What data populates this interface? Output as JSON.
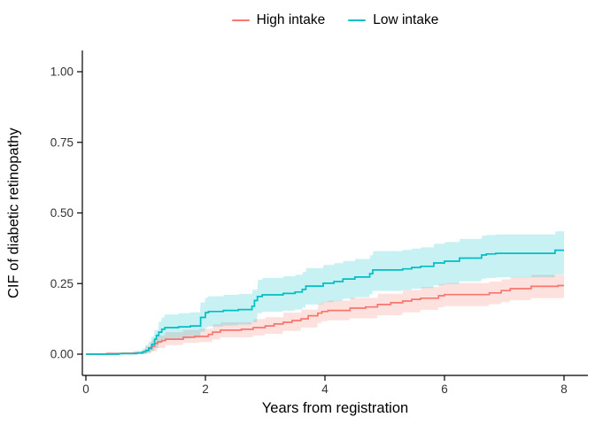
{
  "chart_data": {
    "type": "line",
    "subtype": "step-cumulative-incidence-with-confidence-bands",
    "title": "",
    "xlabel": "Years from registration",
    "ylabel": "CIF of diabetic retinopathy",
    "xlim": [
      0,
      8
    ],
    "ylim": [
      0,
      1
    ],
    "grid": false,
    "legend_position": "top-center",
    "background_color": "#ffffff",
    "axis_color": "#000000",
    "tick_label_color": "#333333",
    "x_ticks": [
      {
        "label": "0",
        "value": 0
      },
      {
        "label": "2",
        "value": 2
      },
      {
        "label": "4",
        "value": 4
      },
      {
        "label": "6",
        "value": 6
      },
      {
        "label": "8",
        "value": 8
      }
    ],
    "y_ticks": [
      {
        "label": "0.00",
        "value": 0
      },
      {
        "label": "0.25",
        "value": 0.25
      },
      {
        "label": "0.50",
        "value": 0.5
      },
      {
        "label": "0.75",
        "value": 0.75
      },
      {
        "label": "1.00",
        "value": 1
      }
    ],
    "series": [
      {
        "name": "High intake",
        "color": "#F8766D",
        "band_opacity": 0.22,
        "steps": [
          [
            0,
            0
          ],
          [
            0.35,
            0.002
          ],
          [
            0.6,
            0.003
          ],
          [
            0.8,
            0.004
          ],
          [
            0.95,
            0.008
          ],
          [
            1.0,
            0.013
          ],
          [
            1.05,
            0.019
          ],
          [
            1.1,
            0.028
          ],
          [
            1.15,
            0.038
          ],
          [
            1.2,
            0.044
          ],
          [
            1.27,
            0.048
          ],
          [
            1.33,
            0.053
          ],
          [
            1.63,
            0.06
          ],
          [
            1.82,
            0.063
          ],
          [
            2.05,
            0.07
          ],
          [
            2.12,
            0.078
          ],
          [
            2.25,
            0.085
          ],
          [
            2.6,
            0.088
          ],
          [
            2.8,
            0.094
          ],
          [
            3.0,
            0.1
          ],
          [
            3.15,
            0.107
          ],
          [
            3.3,
            0.113
          ],
          [
            3.45,
            0.119
          ],
          [
            3.6,
            0.125
          ],
          [
            3.72,
            0.136
          ],
          [
            3.88,
            0.145
          ],
          [
            3.95,
            0.151
          ],
          [
            4.05,
            0.155
          ],
          [
            4.42,
            0.163
          ],
          [
            4.68,
            0.167
          ],
          [
            4.88,
            0.176
          ],
          [
            5.1,
            0.182
          ],
          [
            5.3,
            0.188
          ],
          [
            5.45,
            0.194
          ],
          [
            5.6,
            0.198
          ],
          [
            5.9,
            0.207
          ],
          [
            6.0,
            0.211
          ],
          [
            6.75,
            0.217
          ],
          [
            6.95,
            0.225
          ],
          [
            7.1,
            0.232
          ],
          [
            7.45,
            0.24
          ],
          [
            7.9,
            0.243
          ],
          [
            8,
            0.243
          ]
        ],
        "band": [
          [
            0.35,
            0,
            0.006
          ],
          [
            0.8,
            0,
            0.012
          ],
          [
            1.0,
            0.002,
            0.028
          ],
          [
            1.1,
            0.01,
            0.05
          ],
          [
            1.2,
            0.022,
            0.066
          ],
          [
            1.33,
            0.032,
            0.078
          ],
          [
            1.63,
            0.04,
            0.086
          ],
          [
            1.9,
            0.043,
            0.09
          ],
          [
            2.12,
            0.052,
            0.106
          ],
          [
            2.25,
            0.06,
            0.113
          ],
          [
            2.8,
            0.066,
            0.124
          ],
          [
            3.0,
            0.072,
            0.131
          ],
          [
            3.3,
            0.082,
            0.147
          ],
          [
            3.6,
            0.094,
            0.158
          ],
          [
            3.88,
            0.11,
            0.178
          ],
          [
            3.95,
            0.117,
            0.186
          ],
          [
            4.05,
            0.12,
            0.19
          ],
          [
            4.42,
            0.127,
            0.199
          ],
          [
            4.88,
            0.138,
            0.214
          ],
          [
            5.3,
            0.148,
            0.227
          ],
          [
            5.6,
            0.157,
            0.238
          ],
          [
            5.9,
            0.166,
            0.248
          ],
          [
            6.0,
            0.17,
            0.252
          ],
          [
            6.75,
            0.177,
            0.257
          ],
          [
            6.95,
            0.184,
            0.265
          ],
          [
            7.1,
            0.191,
            0.273
          ],
          [
            7.45,
            0.198,
            0.281
          ],
          [
            8,
            0.202,
            0.283
          ]
        ]
      },
      {
        "name": "Low intake",
        "color": "#00BFC4",
        "band_opacity": 0.22,
        "steps": [
          [
            0,
            0
          ],
          [
            0.55,
            0.002
          ],
          [
            0.85,
            0.004
          ],
          [
            0.95,
            0.008
          ],
          [
            1.0,
            0.013
          ],
          [
            1.05,
            0.022
          ],
          [
            1.1,
            0.035
          ],
          [
            1.15,
            0.053
          ],
          [
            1.18,
            0.066
          ],
          [
            1.22,
            0.078
          ],
          [
            1.27,
            0.088
          ],
          [
            1.32,
            0.094
          ],
          [
            1.55,
            0.097
          ],
          [
            1.75,
            0.1
          ],
          [
            1.92,
            0.13
          ],
          [
            2.0,
            0.147
          ],
          [
            2.05,
            0.151
          ],
          [
            2.3,
            0.155
          ],
          [
            2.55,
            0.158
          ],
          [
            2.78,
            0.17
          ],
          [
            2.82,
            0.19
          ],
          [
            2.87,
            0.204
          ],
          [
            2.95,
            0.21
          ],
          [
            3.3,
            0.215
          ],
          [
            3.5,
            0.22
          ],
          [
            3.62,
            0.229
          ],
          [
            3.68,
            0.241
          ],
          [
            3.97,
            0.251
          ],
          [
            4.15,
            0.257
          ],
          [
            4.3,
            0.266
          ],
          [
            4.5,
            0.273
          ],
          [
            4.75,
            0.285
          ],
          [
            4.8,
            0.298
          ],
          [
            5.3,
            0.302
          ],
          [
            5.45,
            0.307
          ],
          [
            5.6,
            0.311
          ],
          [
            5.82,
            0.323
          ],
          [
            6.0,
            0.329
          ],
          [
            6.25,
            0.34
          ],
          [
            6.62,
            0.351
          ],
          [
            6.7,
            0.355
          ],
          [
            6.86,
            0.357
          ],
          [
            7.85,
            0.368
          ],
          [
            8,
            0.368
          ]
        ],
        "band": [
          [
            0.85,
            0,
            0.01
          ],
          [
            0.95,
            0.001,
            0.02
          ],
          [
            1.0,
            0.002,
            0.032
          ],
          [
            1.05,
            0.006,
            0.045
          ],
          [
            1.1,
            0.012,
            0.062
          ],
          [
            1.15,
            0.022,
            0.085
          ],
          [
            1.22,
            0.038,
            0.115
          ],
          [
            1.27,
            0.046,
            0.13
          ],
          [
            1.32,
            0.052,
            0.14
          ],
          [
            1.55,
            0.055,
            0.145
          ],
          [
            1.75,
            0.058,
            0.148
          ],
          [
            1.92,
            0.08,
            0.183
          ],
          [
            2.0,
            0.095,
            0.2
          ],
          [
            2.05,
            0.098,
            0.205
          ],
          [
            2.3,
            0.102,
            0.21
          ],
          [
            2.55,
            0.105,
            0.213
          ],
          [
            2.78,
            0.113,
            0.228
          ],
          [
            2.87,
            0.145,
            0.263
          ],
          [
            2.95,
            0.15,
            0.27
          ],
          [
            3.3,
            0.154,
            0.276
          ],
          [
            3.5,
            0.158,
            0.281
          ],
          [
            3.62,
            0.165,
            0.291
          ],
          [
            3.68,
            0.176,
            0.305
          ],
          [
            3.97,
            0.184,
            0.316
          ],
          [
            4.15,
            0.189,
            0.322
          ],
          [
            4.3,
            0.196,
            0.33
          ],
          [
            4.5,
            0.202,
            0.337
          ],
          [
            4.75,
            0.212,
            0.35
          ],
          [
            4.8,
            0.224,
            0.365
          ],
          [
            5.3,
            0.227,
            0.369
          ],
          [
            5.45,
            0.231,
            0.374
          ],
          [
            5.6,
            0.234,
            0.378
          ],
          [
            5.82,
            0.244,
            0.391
          ],
          [
            6.0,
            0.249,
            0.397
          ],
          [
            6.25,
            0.258,
            0.408
          ],
          [
            6.62,
            0.267,
            0.419
          ],
          [
            6.7,
            0.27,
            0.422
          ],
          [
            6.86,
            0.272,
            0.424
          ],
          [
            7.85,
            0.282,
            0.435
          ],
          [
            8,
            0.293,
            0.437
          ]
        ]
      }
    ]
  }
}
